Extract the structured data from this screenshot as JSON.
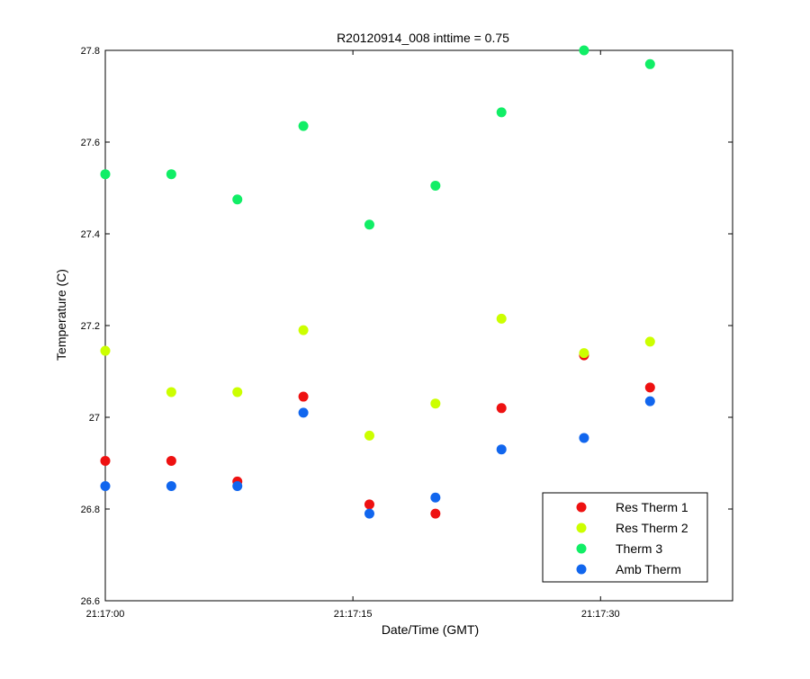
{
  "chart_data": {
    "type": "scatter",
    "title": "R20120914_008 inttime = 0.75",
    "xlabel": "Date/Time (GMT)",
    "ylabel": "Temperature (C)",
    "xlim_seconds_after_21_17_00": [
      0,
      38
    ],
    "ylim": [
      26.6,
      27.8
    ],
    "x_ticks": [
      "21:17:00",
      "21:17:15",
      "21:17:30"
    ],
    "y_ticks": [
      "26.6",
      "26.8",
      "27",
      "27.2",
      "27.4",
      "27.6",
      "27.8"
    ],
    "grid": false,
    "legend_position": "bottom-right",
    "x": [
      "21:17:00",
      "21:17:04",
      "21:17:08",
      "21:17:12",
      "21:17:16",
      "21:17:20",
      "21:17:24",
      "21:17:29",
      "21:17:33"
    ],
    "series": [
      {
        "name": "Res Therm 1",
        "color": "#ee1111",
        "values": [
          26.905,
          26.905,
          26.86,
          27.045,
          26.81,
          26.79,
          27.02,
          27.135,
          27.065
        ]
      },
      {
        "name": "Res Therm 2",
        "color": "#ccff00",
        "values": [
          27.145,
          27.055,
          27.055,
          27.19,
          26.96,
          27.03,
          27.215,
          27.14,
          27.165
        ]
      },
      {
        "name": "Therm 3",
        "color": "#11ee66",
        "values": [
          27.53,
          27.53,
          27.475,
          27.635,
          27.42,
          27.505,
          27.665,
          27.8,
          27.77
        ]
      },
      {
        "name": "Amb Therm",
        "color": "#1166ee",
        "values": [
          26.85,
          26.85,
          26.85,
          27.01,
          26.79,
          26.825,
          26.93,
          26.955,
          27.035
        ]
      }
    ]
  }
}
